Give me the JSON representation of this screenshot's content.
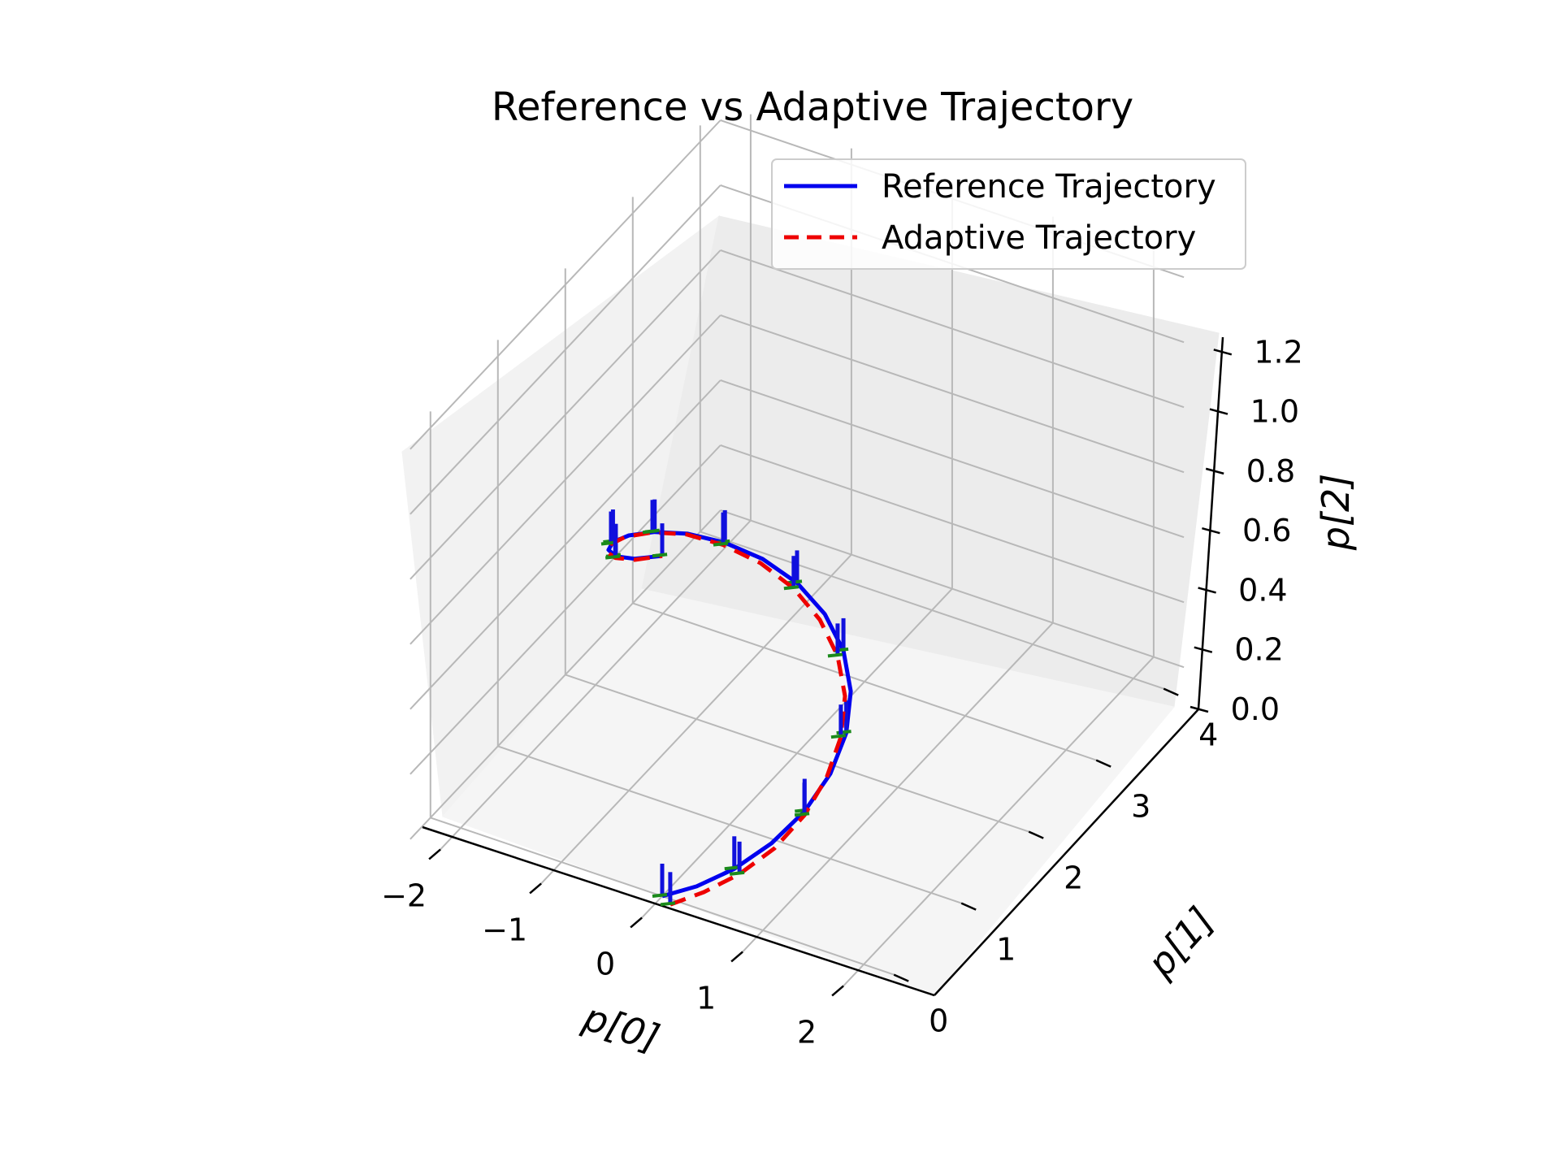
{
  "chart_data": {
    "type": "line",
    "projection": "3d",
    "title": "Reference vs Adaptive Trajectory",
    "xlabel": "p[0]",
    "ylabel": "p[1]",
    "zlabel": "p[2]",
    "xlim": [
      -2.3,
      2.3
    ],
    "ylim": [
      -0.3,
      4.3
    ],
    "zlim": [
      0.0,
      1.25
    ],
    "x_ticks": [
      "−2",
      "−1",
      "0",
      "1",
      "2"
    ],
    "x_tick_values": [
      -2,
      -1,
      0,
      1,
      2
    ],
    "y_ticks": [
      "0",
      "1",
      "2",
      "3",
      "4"
    ],
    "y_tick_values": [
      0,
      1,
      2,
      3,
      4
    ],
    "z_ticks": [
      "0.0",
      "0.2",
      "0.4",
      "0.6",
      "0.8",
      "1.0",
      "1.2"
    ],
    "z_tick_values": [
      0,
      0.2,
      0.4,
      0.6,
      0.8,
      1.0,
      1.2
    ],
    "grid": true,
    "legend_position": "top-right",
    "series": [
      {
        "name": "Reference Trajectory",
        "color": "#0000ee",
        "style": "solid",
        "points": [
          [
            0.0,
            0.0,
            0.0
          ],
          [
            0.309,
            0.049,
            0.052
          ],
          [
            0.588,
            0.191,
            0.104
          ],
          [
            0.809,
            0.412,
            0.157
          ],
          [
            0.951,
            0.691,
            0.209
          ],
          [
            1.0,
            1.0,
            0.262
          ],
          [
            0.951,
            1.309,
            0.314
          ],
          [
            0.809,
            1.588,
            0.366
          ],
          [
            0.588,
            1.809,
            0.419
          ],
          [
            0.309,
            1.951,
            0.471
          ],
          [
            0.0,
            2.0,
            0.524
          ],
          [
            -0.309,
            1.951,
            0.576
          ],
          [
            -0.588,
            1.809,
            0.628
          ],
          [
            -0.809,
            1.588,
            0.681
          ],
          [
            -0.951,
            1.309,
            0.733
          ],
          [
            -1.0,
            1.0,
            0.785
          ],
          [
            -0.951,
            0.691,
            0.838
          ],
          [
            -0.809,
            0.412,
            0.89
          ],
          [
            -0.588,
            0.191,
            0.942
          ],
          [
            -0.309,
            0.049,
            0.995
          ],
          [
            0.0,
            0.0,
            1.047
          ]
        ]
      },
      {
        "name": "Adaptive Trajectory",
        "color": "#ee0000",
        "style": "dashed",
        "points": [
          [
            0.12,
            -0.06,
            0.0
          ],
          [
            0.4,
            0.02,
            0.05
          ],
          [
            0.66,
            0.16,
            0.102
          ],
          [
            0.86,
            0.38,
            0.154
          ],
          [
            0.97,
            0.66,
            0.206
          ],
          [
            0.99,
            0.96,
            0.258
          ],
          [
            0.93,
            1.26,
            0.31
          ],
          [
            0.79,
            1.53,
            0.362
          ],
          [
            0.57,
            1.75,
            0.414
          ],
          [
            0.3,
            1.89,
            0.466
          ],
          [
            0.0,
            1.95,
            0.518
          ],
          [
            -0.31,
            1.92,
            0.57
          ],
          [
            -0.6,
            1.8,
            0.622
          ],
          [
            -0.83,
            1.6,
            0.674
          ],
          [
            -0.98,
            1.32,
            0.726
          ],
          [
            -1.03,
            1.0,
            0.778
          ],
          [
            -0.97,
            0.69,
            0.83
          ],
          [
            -0.82,
            0.41,
            0.882
          ],
          [
            -0.6,
            0.2,
            0.934
          ],
          [
            -0.32,
            0.07,
            0.986
          ],
          [
            -0.02,
            0.03,
            1.038
          ]
        ]
      }
    ]
  }
}
